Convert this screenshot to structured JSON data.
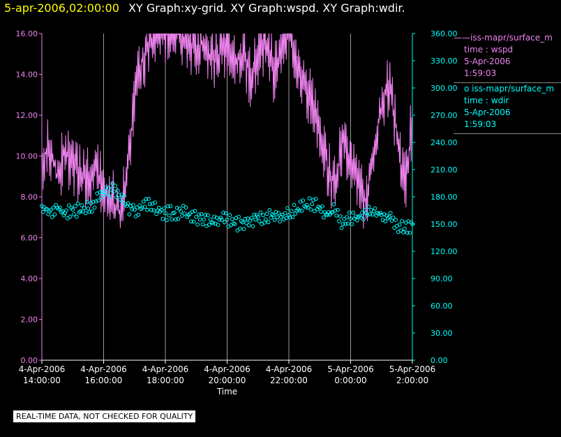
{
  "header": {
    "timestamp": "5-apr-2006,02:00:00",
    "graphs": "XY Graph:xy-grid.  XY Graph:wspd.  XY Graph:wdir."
  },
  "legend": {
    "wspd": {
      "line_glyph": "——",
      "source": "iss-mapr/surface_m",
      "series": "time : wspd",
      "date": "5-Apr-2006",
      "time": "1:59:03"
    },
    "wdir": {
      "marker_glyph": "o",
      "source": "iss-mapr/surface_m",
      "series": "time : wdir",
      "date": "5-Apr-2006",
      "time": "1:59:03"
    }
  },
  "footer": {
    "note": "REAL-TIME DATA, NOT CHECKED FOR QUALITY"
  },
  "colors": {
    "wspd": "#ee82ee",
    "wdir": "#00ffff",
    "grid": "#9a9a9a",
    "axis_text": "#ffffff"
  },
  "chart_data": {
    "type": "line",
    "xlabel": "Time",
    "x_hours_range": [
      14,
      26
    ],
    "x_ticks": [
      {
        "hour": 14,
        "date": "4-Apr-2006",
        "time": "14:00:00"
      },
      {
        "hour": 16,
        "date": "4-Apr-2006",
        "time": "16:00:00"
      },
      {
        "hour": 18,
        "date": "4-Apr-2006",
        "time": "18:00:00"
      },
      {
        "hour": 20,
        "date": "4-Apr-2006",
        "time": "20:00:00"
      },
      {
        "hour": 22,
        "date": "4-Apr-2006",
        "time": "22:00:00"
      },
      {
        "hour": 24,
        "date": "5-Apr-2006",
        "time": "0:00:00"
      },
      {
        "hour": 26,
        "date": "5-Apr-2006",
        "time": "2:00:00"
      }
    ],
    "y_left": {
      "range": [
        0,
        16
      ],
      "ticks": [
        "0.00",
        "2.00",
        "4.00",
        "6.00",
        "8.00",
        "10.00",
        "12.00",
        "14.00",
        "16.00"
      ]
    },
    "y_right": {
      "range": [
        0,
        360
      ],
      "ticks": [
        "0.00",
        "30.00",
        "60.00",
        "90.00",
        "120.00",
        "150.00",
        "180.00",
        "210.00",
        "240.00",
        "270.00",
        "300.00",
        "330.00",
        "360.00"
      ]
    },
    "grid": "vertical",
    "series": [
      {
        "name": "wspd",
        "axis": "left",
        "style": "line",
        "x": [
          14.0,
          14.25,
          14.5,
          14.75,
          15.0,
          15.25,
          15.5,
          15.75,
          16.0,
          16.25,
          16.5,
          16.75,
          17.0,
          17.25,
          17.5,
          17.75,
          18.0,
          18.25,
          18.5,
          18.75,
          19.0,
          19.25,
          19.5,
          19.75,
          20.0,
          20.25,
          20.5,
          20.75,
          21.0,
          21.25,
          21.5,
          21.75,
          22.0,
          22.25,
          22.5,
          22.75,
          23.0,
          23.25,
          23.5,
          23.75,
          24.0,
          24.25,
          24.5,
          24.75,
          25.0,
          25.25,
          25.5,
          25.75,
          26.0
        ],
        "y": [
          9.8,
          10.5,
          9.0,
          10.2,
          9.6,
          9.2,
          8.8,
          9.5,
          8.2,
          8.0,
          7.2,
          8.8,
          13.0,
          14.6,
          15.6,
          16.0,
          16.0,
          15.8,
          16.0,
          15.5,
          15.2,
          15.6,
          14.8,
          15.0,
          15.5,
          14.6,
          15.0,
          14.0,
          14.8,
          15.5,
          14.2,
          15.2,
          16.0,
          14.0,
          13.5,
          12.5,
          11.5,
          9.5,
          8.5,
          11.0,
          9.5,
          8.5,
          7.8,
          10.5,
          12.5,
          13.5,
          11.0,
          8.5,
          11.8
        ]
      },
      {
        "name": "wdir",
        "axis": "right",
        "style": "markers",
        "x": [
          14.0,
          14.25,
          14.5,
          14.75,
          15.0,
          15.25,
          15.5,
          15.75,
          16.0,
          16.25,
          16.5,
          16.75,
          17.0,
          17.25,
          17.5,
          17.75,
          18.0,
          18.25,
          18.5,
          18.75,
          19.0,
          19.25,
          19.5,
          19.75,
          20.0,
          20.25,
          20.5,
          20.75,
          21.0,
          21.25,
          21.5,
          21.75,
          22.0,
          22.25,
          22.5,
          22.75,
          23.0,
          23.25,
          23.5,
          23.75,
          24.0,
          24.25,
          24.5,
          24.75,
          25.0,
          25.25,
          25.5,
          25.75,
          26.0
        ],
        "y": [
          170,
          164,
          168,
          162,
          166,
          164,
          167,
          175,
          185,
          188,
          182,
          170,
          166,
          168,
          172,
          165,
          162,
          162,
          164,
          160,
          158,
          155,
          152,
          155,
          155,
          150,
          152,
          154,
          158,
          155,
          160,
          158,
          160,
          165,
          170,
          172,
          168,
          160,
          165,
          150,
          156,
          158,
          162,
          164,
          160,
          158,
          148,
          145,
          150
        ]
      }
    ]
  }
}
